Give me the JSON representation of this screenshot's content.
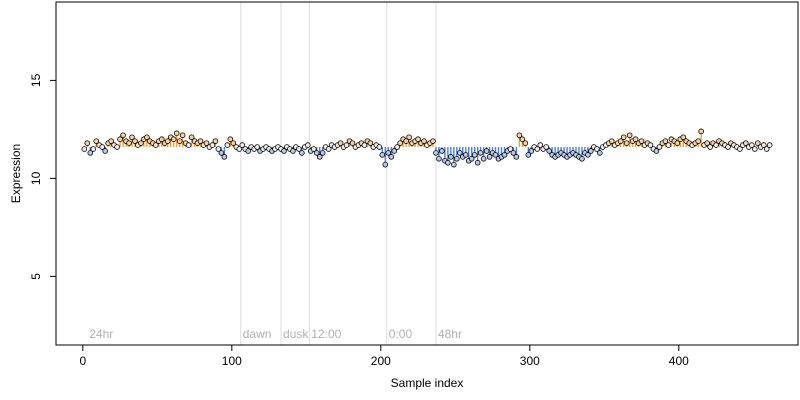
{
  "chart_data": {
    "type": "scatter",
    "title": "",
    "xlabel": "Sample index",
    "ylabel": "Expression",
    "xlim": [
      -18,
      480
    ],
    "ylim": [
      1.5,
      19
    ],
    "x_ticks": [
      0,
      100,
      200,
      300,
      400
    ],
    "y_ticks": [
      5,
      10,
      15
    ],
    "baseline": 11.6,
    "grid": false,
    "legend": "none",
    "annotations": [
      {
        "label": "24hr",
        "x": 3
      },
      {
        "label": "dawn",
        "x": 106
      },
      {
        "label": "dusk",
        "x": 133
      },
      {
        "label": "12:00",
        "x": 152
      },
      {
        "label": "0:00",
        "x": 204
      },
      {
        "label": "48hr",
        "x": 237
      }
    ],
    "vlines": [
      106,
      133,
      152,
      204,
      237
    ],
    "colors": {
      "above": "#e8a04a",
      "below": "#4a7fd4",
      "point_fill_above": "#f3d2a6",
      "point_fill_below": "#b7c9ee",
      "point_fill_neutral": "#eeeeee",
      "vline": "#dddddd",
      "annotation": "#b0b0b0"
    },
    "series": [
      {
        "x": [
          1,
          3,
          5,
          7,
          9,
          11,
          13,
          15,
          17,
          19,
          21,
          23,
          25,
          27,
          29,
          31,
          33,
          35,
          37,
          39,
          41,
          43,
          45,
          47,
          49,
          51,
          53,
          55,
          57,
          59,
          61,
          63,
          65,
          67,
          69,
          71,
          73,
          75,
          77,
          79,
          81,
          83,
          85,
          87,
          89,
          91,
          93,
          95,
          97,
          99,
          101,
          103,
          105,
          107,
          109,
          111,
          113,
          115,
          117,
          119,
          121,
          123,
          125,
          127,
          129,
          131,
          133,
          135,
          137,
          139,
          141,
          143,
          145,
          147,
          149,
          151,
          153,
          155,
          157,
          159,
          161,
          163,
          165,
          167,
          169,
          171,
          173,
          175,
          177,
          179,
          181,
          183,
          185,
          187,
          189,
          191,
          193,
          195,
          197,
          199,
          201,
          203,
          205,
          207,
          209,
          211,
          213,
          215,
          217,
          219,
          221,
          223,
          225,
          227,
          229,
          231,
          233,
          235,
          237,
          239,
          241,
          243,
          245,
          247,
          249,
          251,
          253,
          255,
          257,
          259,
          261,
          263,
          265,
          267,
          269,
          271,
          273,
          275,
          277,
          279,
          281,
          283,
          285,
          287,
          289,
          291,
          293,
          295,
          297,
          299,
          301,
          303,
          305,
          307,
          309,
          311,
          313,
          315,
          317,
          319,
          321,
          323,
          325,
          327,
          329,
          331,
          333,
          335,
          337,
          339,
          341,
          343,
          345,
          347,
          349,
          351,
          353,
          355,
          357,
          359,
          361,
          363,
          365,
          367,
          369,
          371,
          373,
          375,
          377,
          379,
          381,
          383,
          385,
          387,
          389,
          391,
          393,
          395,
          397,
          399,
          401,
          403,
          405,
          407,
          409,
          411,
          413,
          415,
          417,
          419,
          421,
          423,
          425,
          427,
          429,
          431,
          433,
          435,
          437,
          439,
          441,
          443,
          445,
          447,
          449,
          451,
          453,
          455,
          457,
          459,
          461
        ],
        "y": [
          11.5,
          11.8,
          11.3,
          11.5,
          11.9,
          11.7,
          11.6,
          11.4,
          11.8,
          11.9,
          11.7,
          11.6,
          12.0,
          12.2,
          11.9,
          11.8,
          12.1,
          11.9,
          11.7,
          11.8,
          12.0,
          12.1,
          11.9,
          11.8,
          11.7,
          11.9,
          12.0,
          11.8,
          11.9,
          12.1,
          12.0,
          12.3,
          11.9,
          12.2,
          11.8,
          11.7,
          12.1,
          11.9,
          11.8,
          11.9,
          11.7,
          11.8,
          11.6,
          11.7,
          11.9,
          11.5,
          11.3,
          11.1,
          11.7,
          12.0,
          11.8,
          11.6,
          11.5,
          11.7,
          11.5,
          11.4,
          11.6,
          11.5,
          11.6,
          11.4,
          11.5,
          11.6,
          11.5,
          11.4,
          11.5,
          11.6,
          11.5,
          11.4,
          11.6,
          11.5,
          11.4,
          11.6,
          11.5,
          11.3,
          11.6,
          11.7,
          11.4,
          11.5,
          11.3,
          11.1,
          11.3,
          11.6,
          11.5,
          11.7,
          11.6,
          11.7,
          11.8,
          11.6,
          11.7,
          11.9,
          11.8,
          11.6,
          11.7,
          11.8,
          11.7,
          11.9,
          11.8,
          11.6,
          11.7,
          11.6,
          11.2,
          10.7,
          11.3,
          11.1,
          11.4,
          11.6,
          11.8,
          12.0,
          11.9,
          12.1,
          11.8,
          11.9,
          12.0,
          11.8,
          11.9,
          11.7,
          11.8,
          11.9,
          11.3,
          11.0,
          11.4,
          10.9,
          10.8,
          11.1,
          10.7,
          11.0,
          11.3,
          11.1,
          11.2,
          10.9,
          11.0,
          11.2,
          10.8,
          11.3,
          11.0,
          11.4,
          11.1,
          11.3,
          11.2,
          11.0,
          11.1,
          11.2,
          11.4,
          11.5,
          11.3,
          11.1,
          12.2,
          12.0,
          11.8,
          11.2,
          11.4,
          11.6,
          11.5,
          11.7,
          11.5,
          11.6,
          11.4,
          11.2,
          11.1,
          11.2,
          11.3,
          11.2,
          11.1,
          11.2,
          11.3,
          11.2,
          11.1,
          11.0,
          11.3,
          11.2,
          11.4,
          11.6,
          11.5,
          11.3,
          11.6,
          11.7,
          11.8,
          11.9,
          11.7,
          11.8,
          11.9,
          12.1,
          11.8,
          12.2,
          11.9,
          12.0,
          11.8,
          11.9,
          11.7,
          11.8,
          11.7,
          11.5,
          11.4,
          11.6,
          11.8,
          11.9,
          11.7,
          12.0,
          11.9,
          11.8,
          12.0,
          12.1,
          11.9,
          11.8,
          11.7,
          11.8,
          11.9,
          12.4,
          11.7,
          11.8,
          11.6,
          11.8,
          11.7,
          11.9,
          11.8,
          11.7,
          11.6,
          11.8,
          11.7,
          11.6,
          11.5,
          11.7,
          11.8,
          11.6,
          11.7,
          11.5,
          11.8,
          11.6,
          11.7,
          11.5,
          11.7
        ]
      }
    ]
  }
}
